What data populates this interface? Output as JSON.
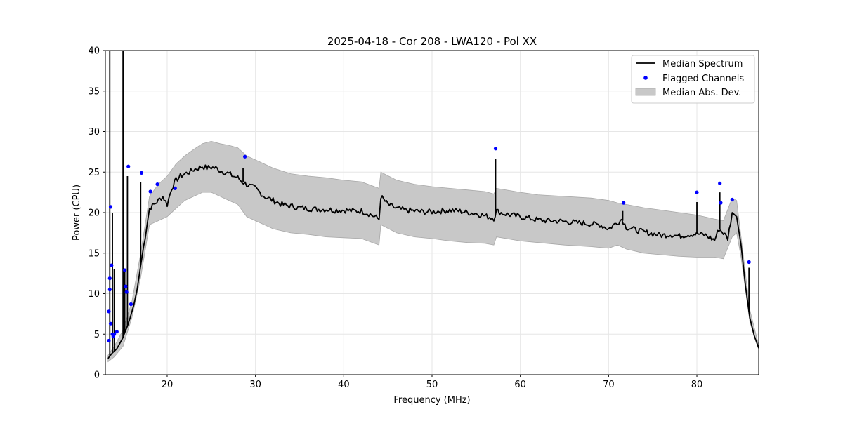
{
  "chart_data": {
    "type": "line",
    "title": "2025-04-18 - Cor 208 - LWA120 - Pol XX",
    "xlabel": "Frequency (MHz)",
    "ylabel": "Power (CPU)",
    "xlim": [
      13,
      87
    ],
    "ylim": [
      0,
      40
    ],
    "xticks": [
      20,
      30,
      40,
      50,
      60,
      70,
      80
    ],
    "yticks": [
      0,
      5,
      10,
      15,
      20,
      25,
      30,
      35,
      40
    ],
    "grid": true,
    "legend": {
      "placement": "top-right",
      "entries": [
        {
          "label": "Median Spectrum",
          "kind": "line",
          "color": "#000000"
        },
        {
          "label": "Flagged Channels",
          "kind": "marker",
          "color": "#0000ff"
        },
        {
          "label": "Median Abs. Dev.",
          "kind": "patch",
          "color": "#c8c8c8"
        }
      ]
    },
    "series": [
      {
        "name": "Median Spectrum",
        "color": "#000000",
        "x": [
          13.3,
          13.5,
          13.8,
          14.0,
          14.3,
          14.5,
          14.7,
          15.0,
          15.2,
          15.5,
          15.8,
          16.2,
          16.6,
          17.0,
          17.5,
          18.0,
          18.5,
          19.0,
          19.5,
          20.0,
          20.5,
          21.0,
          21.5,
          22.0,
          22.5,
          23.0,
          23.5,
          24.0,
          24.5,
          25.0,
          25.5,
          26.0,
          26.5,
          27.0,
          27.5,
          28.0,
          28.5,
          29.0,
          29.5,
          30.0,
          31.0,
          32.0,
          33.0,
          34.0,
          35.0,
          36.0,
          37.0,
          38.0,
          39.0,
          40.0,
          41.0,
          42.0,
          43.0,
          44.0,
          44.2,
          45.0,
          46.0,
          47.0,
          48.0,
          49.0,
          50.0,
          51.0,
          52.0,
          53.0,
          54.0,
          55.0,
          56.0,
          57.0,
          57.3,
          58.0,
          59.0,
          60.0,
          61.0,
          62.0,
          63.0,
          64.0,
          65.0,
          66.0,
          67.0,
          68.0,
          69.0,
          70.0,
          71.0,
          71.5,
          72.0,
          73.0,
          74.0,
          75.0,
          76.0,
          77.0,
          78.0,
          79.0,
          80.0,
          81.0,
          82.0,
          82.5,
          83.0,
          83.5,
          84.0,
          84.5,
          85.0,
          85.5,
          86.0,
          86.5,
          87.0
        ],
        "values": [
          2.0,
          2.3,
          2.7,
          2.9,
          3.2,
          3.6,
          4.0,
          4.6,
          5.2,
          6.0,
          7.0,
          8.5,
          10.5,
          13.5,
          17.0,
          20.5,
          21.0,
          21.5,
          22.0,
          21.0,
          23.0,
          24.0,
          24.5,
          24.8,
          25.0,
          25.3,
          25.5,
          25.7,
          25.5,
          25.6,
          25.5,
          25.2,
          25.0,
          24.8,
          24.5,
          24.3,
          23.8,
          23.5,
          23.2,
          23.0,
          22.0,
          21.5,
          21.0,
          20.8,
          20.6,
          20.5,
          20.4,
          20.4,
          20.3,
          20.3,
          20.2,
          20.2,
          19.8,
          19.2,
          22.0,
          21.0,
          20.5,
          20.3,
          20.2,
          20.1,
          20.1,
          20.2,
          20.3,
          20.2,
          20.0,
          19.9,
          19.6,
          19.3,
          20.2,
          19.9,
          19.7,
          19.5,
          19.3,
          19.1,
          19.0,
          19.0,
          18.9,
          18.8,
          18.7,
          18.6,
          18.5,
          18.0,
          18.8,
          19.2,
          18.2,
          17.9,
          17.6,
          17.4,
          17.2,
          17.3,
          17.1,
          17.3,
          17.4,
          17.2,
          16.6,
          18.0,
          17.5,
          16.8,
          20.0,
          19.5,
          16.0,
          11.0,
          7.0,
          4.8,
          3.3
        ]
      },
      {
        "name": "Median Abs. Dev.",
        "color": "#c8c8c8",
        "x": [
          13.3,
          14.0,
          15.0,
          16.0,
          17.0,
          18.0,
          19.0,
          20.0,
          21.0,
          22.0,
          23.0,
          24.0,
          25.0,
          26.0,
          27.0,
          28.0,
          29.0,
          30.0,
          32.0,
          34.0,
          36.0,
          38.0,
          40.0,
          42.0,
          44.0,
          44.2,
          46.0,
          48.0,
          50.0,
          52.0,
          54.0,
          56.0,
          57.0,
          57.3,
          60.0,
          62.0,
          65.0,
          68.0,
          70.0,
          71.0,
          72.0,
          74.0,
          76.0,
          78.0,
          80.0,
          82.0,
          83.0,
          84.0,
          84.5,
          85.0,
          86.0,
          87.0
        ],
        "upper": [
          2.4,
          3.5,
          5.5,
          9.0,
          15.0,
          22.0,
          23.5,
          24.5,
          26.0,
          27.0,
          27.8,
          28.5,
          28.8,
          28.5,
          28.3,
          28.0,
          27.0,
          26.5,
          25.5,
          24.8,
          24.5,
          24.3,
          24.0,
          23.8,
          23.0,
          25.0,
          24.0,
          23.5,
          23.2,
          23.0,
          22.8,
          22.6,
          22.3,
          23.0,
          22.5,
          22.2,
          22.0,
          21.8,
          21.5,
          21.2,
          21.0,
          20.6,
          20.3,
          20.0,
          19.7,
          19.2,
          19.0,
          21.8,
          21.5,
          17.0,
          8.0,
          3.6
        ],
        "lower": [
          1.6,
          2.2,
          3.5,
          7.0,
          12.0,
          18.5,
          19.0,
          19.5,
          20.5,
          21.5,
          22.0,
          22.5,
          22.5,
          22.0,
          21.5,
          21.0,
          19.5,
          19.0,
          18.0,
          17.5,
          17.3,
          17.0,
          16.9,
          16.8,
          16.0,
          18.5,
          17.5,
          17.0,
          16.8,
          16.5,
          16.3,
          16.2,
          16.0,
          17.0,
          16.5,
          16.3,
          16.0,
          15.8,
          15.6,
          16.0,
          15.5,
          15.0,
          14.8,
          14.6,
          14.5,
          14.5,
          14.3,
          17.0,
          17.5,
          14.5,
          6.5,
          3.1
        ]
      }
    ],
    "spikes": [
      {
        "x": 13.5,
        "peak": 40.0
      },
      {
        "x": 13.8,
        "peak": 20.0
      },
      {
        "x": 14.0,
        "peak": 13.0
      },
      {
        "x": 15.0,
        "peak": 40.0
      },
      {
        "x": 15.2,
        "peak": 13.0
      },
      {
        "x": 15.5,
        "peak": 24.5
      },
      {
        "x": 17.0,
        "peak": 23.8
      },
      {
        "x": 28.6,
        "peak": 25.5
      },
      {
        "x": 57.2,
        "peak": 26.6
      },
      {
        "x": 71.6,
        "peak": 20.2
      },
      {
        "x": 80.0,
        "peak": 21.3
      },
      {
        "x": 82.6,
        "peak": 22.5
      },
      {
        "x": 85.9,
        "peak": 13.2
      }
    ],
    "flagged_channels": {
      "name": "Flagged Channels",
      "color": "#0000ff",
      "x": [
        13.4,
        13.4,
        13.5,
        13.5,
        13.6,
        13.6,
        13.7,
        13.8,
        13.9,
        14.0,
        14.3,
        15.2,
        15.3,
        15.4,
        15.6,
        15.9,
        17.1,
        18.1,
        18.9,
        20.9,
        28.8,
        57.2,
        71.7,
        80.0,
        82.6,
        82.7,
        84.0,
        85.9
      ],
      "values": [
        4.2,
        7.8,
        10.5,
        11.9,
        6.3,
        20.7,
        13.5,
        5.0,
        4.7,
        5.0,
        5.3,
        12.9,
        10.9,
        10.2,
        25.7,
        8.7,
        24.9,
        22.6,
        23.5,
        23.0,
        26.9,
        27.9,
        21.2,
        22.5,
        23.6,
        21.2,
        21.6,
        13.9
      ]
    }
  }
}
